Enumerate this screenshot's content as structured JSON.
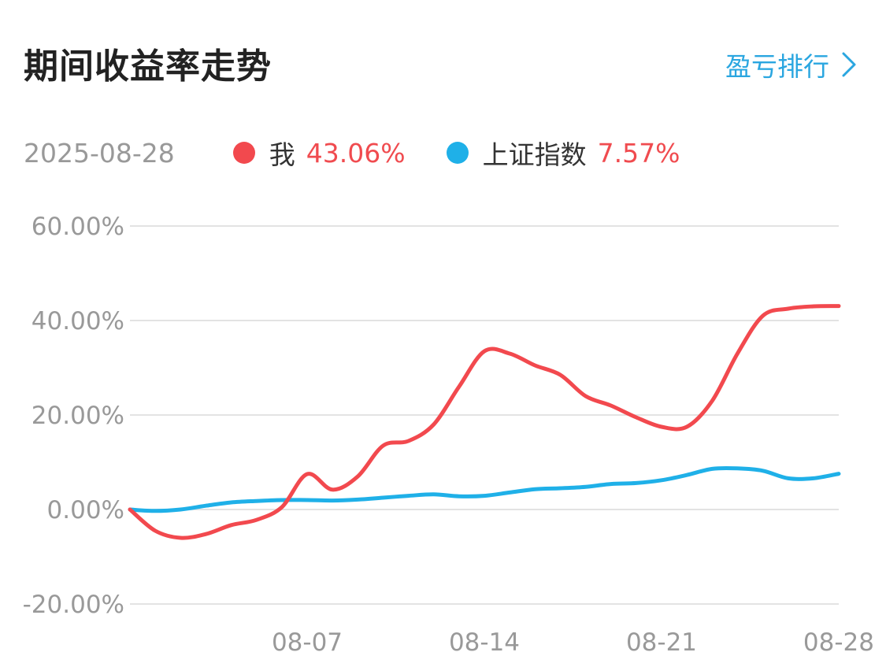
{
  "header": {
    "title": "期间收益率走势",
    "ranking_label": "盈亏排行"
  },
  "legend": {
    "date": "2025-08-28",
    "items": [
      {
        "name": "我",
        "value": "43.06%",
        "dot_color": "#f2494e",
        "value_color": "#f04b4f"
      },
      {
        "name": "上证指数",
        "value": "7.57%",
        "dot_color": "#1fb0e8",
        "value_color": "#f04b4f"
      }
    ]
  },
  "icons": {
    "chevron": "chevron-right-icon"
  },
  "chart_data": {
    "type": "line",
    "x": [
      "07-31",
      "08-01",
      "08-02",
      "08-03",
      "08-04",
      "08-05",
      "08-06",
      "08-07",
      "08-08",
      "08-09",
      "08-10",
      "08-11",
      "08-12",
      "08-13",
      "08-14",
      "08-15",
      "08-16",
      "08-17",
      "08-18",
      "08-19",
      "08-20",
      "08-21",
      "08-22",
      "08-23",
      "08-24",
      "08-25",
      "08-26",
      "08-27",
      "08-28"
    ],
    "xticks": [
      "08-07",
      "08-14",
      "08-21",
      "08-28"
    ],
    "yticks": [
      "60.00%",
      "40.00%",
      "20.00%",
      "0.00%",
      "-20.00%"
    ],
    "ytick_values": [
      60,
      40,
      20,
      0,
      -20
    ],
    "ylim": [
      -20,
      60
    ],
    "grid": true,
    "legend_position": "top",
    "series": [
      {
        "name": "我",
        "color": "#f2494e",
        "values": [
          0,
          -4.5,
          -6,
          -5.2,
          -3.3,
          -2.2,
          0.5,
          7.5,
          4.2,
          7,
          13.5,
          14.5,
          18,
          26,
          33.5,
          33,
          30.5,
          28.5,
          24,
          22,
          19.5,
          17.5,
          17.5,
          23,
          33,
          41,
          42.5,
          43,
          43.06
        ]
      },
      {
        "name": "上证指数",
        "color": "#1fb0e8",
        "values": [
          0,
          -0.3,
          0,
          0.8,
          1.5,
          1.8,
          2,
          2,
          1.9,
          2.1,
          2.5,
          2.9,
          3.2,
          2.8,
          2.9,
          3.6,
          4.3,
          4.5,
          4.8,
          5.4,
          5.6,
          6.2,
          7.3,
          8.6,
          8.7,
          8.2,
          6.6,
          6.6,
          7.57
        ]
      }
    ]
  }
}
